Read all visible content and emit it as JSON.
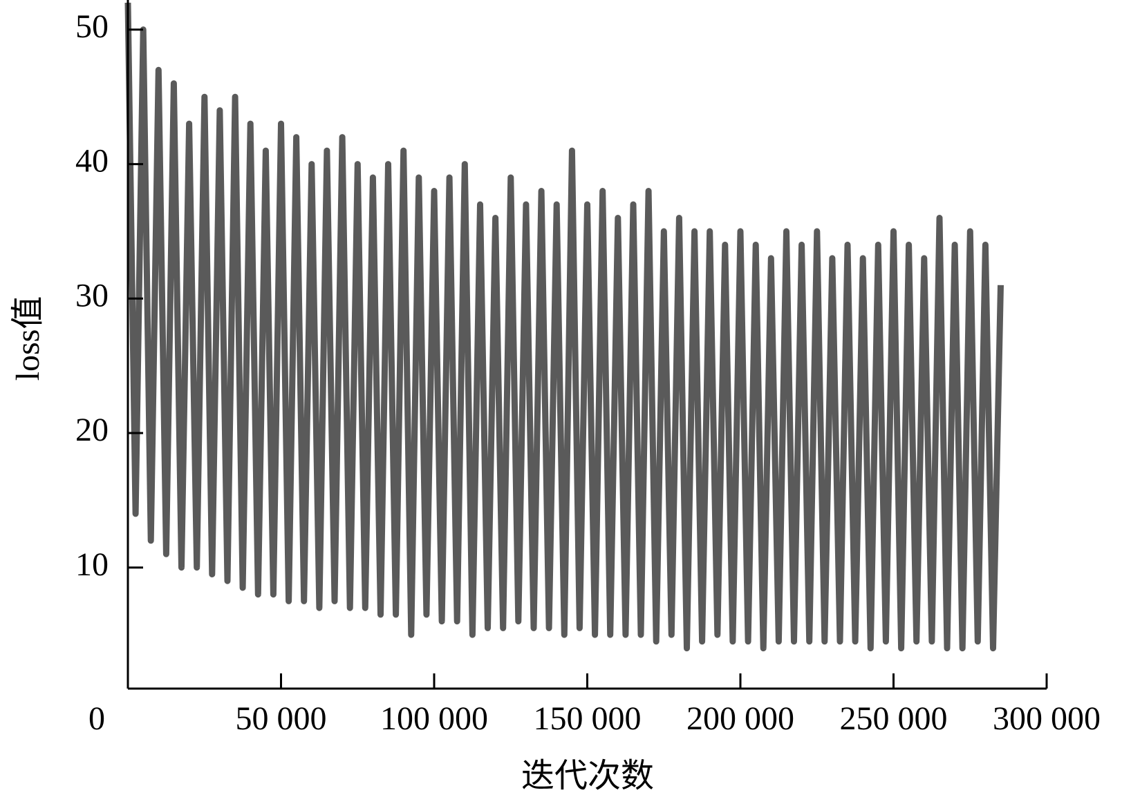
{
  "chart_data": {
    "type": "line",
    "x_label": "迭代次数",
    "y_label": "loss值",
    "color": "#5a5a5a",
    "grid": false,
    "x": [
      0,
      2500,
      5000,
      7500,
      10000,
      12500,
      15000,
      17500,
      20000,
      22500,
      25000,
      27500,
      30000,
      32500,
      35000,
      37500,
      40000,
      42500,
      45000,
      47500,
      50000,
      52500,
      55000,
      57500,
      60000,
      62500,
      65000,
      67500,
      70000,
      72500,
      75000,
      77500,
      80000,
      82500,
      85000,
      87500,
      90000,
      92500,
      95000,
      97500,
      100000,
      102500,
      105000,
      107500,
      110000,
      112500,
      115000,
      117500,
      120000,
      122500,
      125000,
      127500,
      130000,
      132500,
      135000,
      137500,
      140000,
      142500,
      145000,
      147500,
      150000,
      152500,
      155000,
      157500,
      160000,
      162500,
      165000,
      167500,
      170000,
      172500,
      175000,
      177500,
      180000,
      182500,
      185000,
      187500,
      190000,
      192500,
      195000,
      197500,
      200000,
      202500,
      205000,
      207500,
      210000,
      212500,
      215000,
      217500,
      220000,
      222500,
      225000,
      227500,
      230000,
      232500,
      235000,
      237500,
      240000,
      242500,
      245000,
      247500,
      250000,
      252500,
      255000,
      257500,
      260000,
      262500,
      265000,
      267500,
      270000,
      272500,
      275000,
      277500,
      280000,
      282500,
      285000
    ],
    "values": [
      52,
      14,
      50,
      12,
      47,
      11,
      46,
      10,
      43,
      10,
      45,
      9.5,
      44,
      9,
      45,
      8.5,
      43,
      8,
      41,
      8,
      43,
      7.5,
      42,
      7.5,
      40,
      7,
      41,
      7.5,
      42,
      7,
      40,
      7,
      39,
      6.5,
      40,
      6.5,
      41,
      5,
      39,
      6.5,
      38,
      6,
      39,
      6,
      40,
      5,
      37,
      5.5,
      36,
      5.5,
      39,
      6,
      37,
      5.5,
      38,
      5.5,
      37,
      5,
      41,
      5.5,
      37,
      5,
      38,
      5,
      36,
      5,
      37,
      5,
      38,
      4.5,
      35,
      5,
      36,
      4,
      35,
      4.5,
      35,
      5,
      34,
      4.5,
      35,
      4.5,
      34,
      4,
      33,
      4.5,
      35,
      4.5,
      34,
      4.5,
      35,
      4.5,
      33,
      4.5,
      34,
      4.5,
      33,
      4,
      34,
      4.5,
      35,
      4,
      34,
      4.5,
      33,
      4.5,
      36,
      4,
      34,
      4,
      35,
      4.5,
      34,
      4,
      31
    ],
    "xlim": [
      0,
      300000
    ],
    "xticks": [
      0,
      {
        "value": 50000,
        "label": "50 000"
      },
      {
        "value": 100000,
        "label": "100 000"
      },
      {
        "value": 150000,
        "label": "150 000"
      },
      {
        "value": 200000,
        "label": "200 000"
      },
      {
        "value": 250000,
        "label": "250 000"
      },
      {
        "value": 300000,
        "label": "300 000"
      }
    ],
    "ylim": [
      1,
      52.2
    ],
    "yticks": [
      10,
      20,
      30,
      40,
      50
    ]
  }
}
